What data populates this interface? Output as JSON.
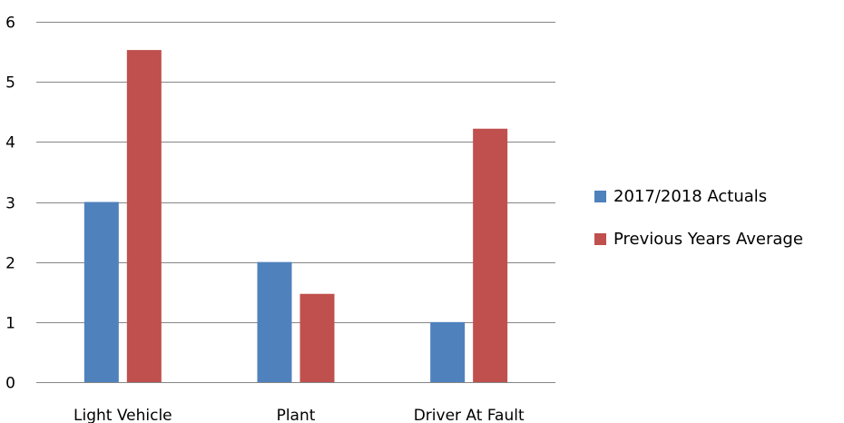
{
  "chart_data": {
    "type": "bar",
    "categories": [
      "Light Vehicle",
      "Plant",
      "Driver At Fault"
    ],
    "series": [
      {
        "name": "2017/2018 Actuals",
        "color": "#4f81bd",
        "values": [
          3,
          2,
          1
        ]
      },
      {
        "name": "Previous Years Average",
        "color": "#c0504d",
        "values": [
          5.53,
          1.47,
          4.22
        ]
      }
    ],
    "ylim": [
      0,
      6
    ],
    "yticks": [
      0,
      1,
      2,
      3,
      4,
      5,
      6
    ],
    "grid": true,
    "legend_position": "right",
    "gridline_color": "#868686"
  }
}
